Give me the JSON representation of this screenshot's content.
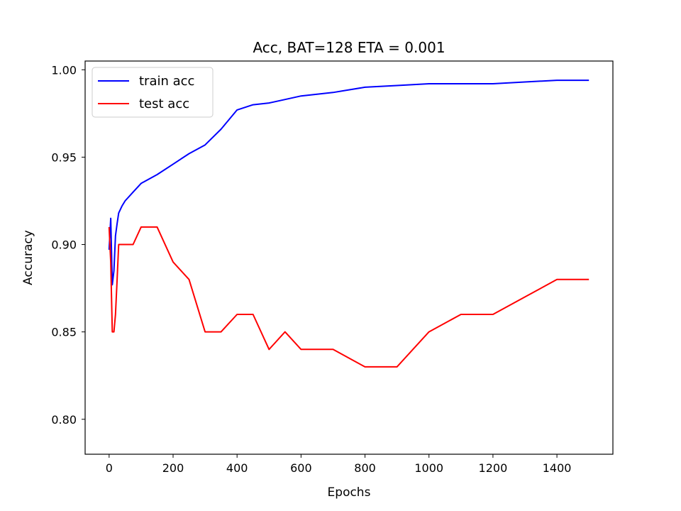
{
  "chart_data": {
    "type": "line",
    "title": "Acc, BAT=128 ETA = 0.001",
    "xlabel": "Epochs",
    "ylabel": "Accuracy",
    "xlim": [
      -75,
      1575
    ],
    "ylim": [
      0.78,
      1.005
    ],
    "xticks": [
      0,
      200,
      400,
      600,
      800,
      1000,
      1200,
      1400
    ],
    "yticks": [
      0.8,
      0.85,
      0.9,
      0.95,
      1.0
    ],
    "ytick_labels": [
      "0.80",
      "0.85",
      "0.90",
      "0.95",
      "1.00"
    ],
    "grid": false,
    "legend": "top-left",
    "series": [
      {
        "name": "train acc",
        "color": "#0000ff",
        "x": [
          0,
          5,
          10,
          15,
          20,
          25,
          30,
          40,
          50,
          75,
          100,
          150,
          200,
          250,
          300,
          350,
          400,
          450,
          500,
          550,
          600,
          700,
          800,
          900,
          1000,
          1100,
          1200,
          1300,
          1400,
          1500
        ],
        "y": [
          0.897,
          0.915,
          0.877,
          0.885,
          0.905,
          0.912,
          0.918,
          0.922,
          0.925,
          0.93,
          0.935,
          0.94,
          0.946,
          0.952,
          0.957,
          0.966,
          0.977,
          0.98,
          0.981,
          0.983,
          0.985,
          0.987,
          0.99,
          0.991,
          0.992,
          0.992,
          0.992,
          0.993,
          0.994,
          0.994
        ]
      },
      {
        "name": "test acc",
        "color": "#ff0000",
        "x": [
          0,
          5,
          10,
          15,
          20,
          25,
          30,
          40,
          50,
          75,
          100,
          150,
          200,
          250,
          300,
          350,
          400,
          450,
          500,
          550,
          600,
          700,
          800,
          900,
          1000,
          1100,
          1200,
          1300,
          1400,
          1500
        ],
        "y": [
          0.91,
          0.89,
          0.85,
          0.85,
          0.86,
          0.88,
          0.9,
          0.9,
          0.9,
          0.9,
          0.91,
          0.91,
          0.89,
          0.88,
          0.85,
          0.85,
          0.86,
          0.86,
          0.84,
          0.85,
          0.84,
          0.84,
          0.83,
          0.83,
          0.85,
          0.86,
          0.86,
          0.87,
          0.88,
          0.88
        ]
      }
    ]
  }
}
